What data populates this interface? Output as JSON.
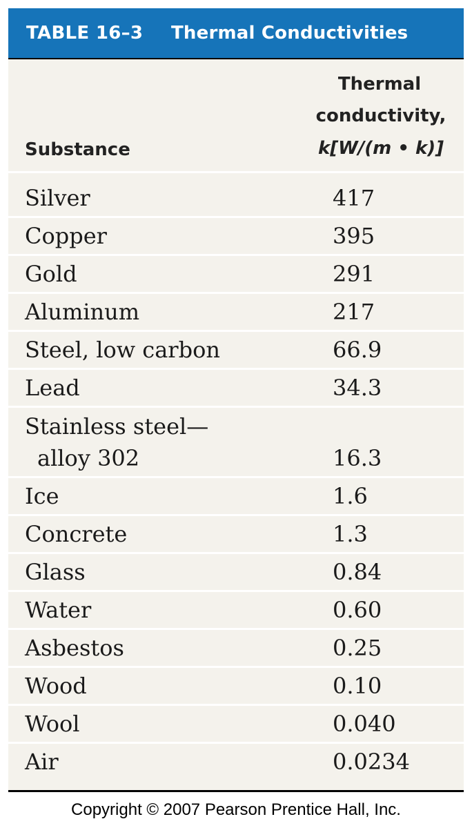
{
  "table": {
    "number": "TABLE 16–3",
    "title": "Thermal Conductivities",
    "header": {
      "substance": "Substance",
      "k_line1": "Thermal",
      "k_line2": "conductivity,",
      "k_line3": "k[W/(m • k)]"
    },
    "rows": [
      {
        "name": "Silver",
        "value": "417"
      },
      {
        "name": "Copper",
        "value": "395"
      },
      {
        "name": "Gold",
        "value": "291"
      },
      {
        "name": "Aluminum",
        "value": "217"
      },
      {
        "name": "Steel, low carbon",
        "value": "66.9"
      },
      {
        "name": "Lead",
        "value": "34.3"
      },
      {
        "name": "Stainless steel—",
        "name2": "alloy 302",
        "value": "16.3"
      },
      {
        "name": "Ice",
        "value": "1.6"
      },
      {
        "name": "Concrete",
        "value": "1.3"
      },
      {
        "name": "Glass",
        "value": "0.84"
      },
      {
        "name": "Water",
        "value": "0.60"
      },
      {
        "name": "Asbestos",
        "value": "0.25"
      },
      {
        "name": "Wood",
        "value": "0.10"
      },
      {
        "name": "Wool",
        "value": "0.040"
      },
      {
        "name": "Air",
        "value": "0.0234"
      }
    ]
  },
  "copyright": "Copyright © 2007 Pearson Prentice Hall, Inc.",
  "colors": {
    "title_bar": "#1674b9",
    "table_bg": "#f4f2ec"
  }
}
